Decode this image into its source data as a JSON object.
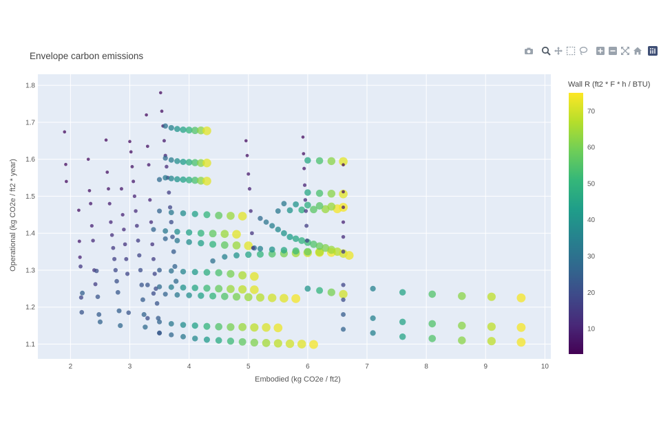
{
  "title": "Envelope carbon emissions",
  "modebar": [
    {
      "icon": "camera-icon"
    },
    {
      "icon": "zoom-icon"
    },
    {
      "icon": "pan-icon"
    },
    {
      "icon": "box-select-icon"
    },
    {
      "icon": "lasso-select-icon"
    },
    {
      "icon": "zoom-in-icon"
    },
    {
      "icon": "zoom-out-icon"
    },
    {
      "icon": "autoscale-icon"
    },
    {
      "icon": "reset-axes-icon"
    },
    {
      "icon": "plotly-logo-icon"
    }
  ],
  "chart_data": {
    "type": "scatter",
    "title": "Envelope carbon emissions",
    "xlabel": "Embodied (kg CO2e / ft2)",
    "ylabel": "Operational (kg CO2e / ft2 * year)",
    "xlim": [
      1.45,
      10.1
    ],
    "ylim": [
      1.06,
      1.83
    ],
    "xticks": [
      "2",
      "3",
      "4",
      "5",
      "6",
      "7",
      "8",
      "9",
      "10"
    ],
    "yticks": [
      "1.1",
      "1.2",
      "1.3",
      "1.4",
      "1.5",
      "1.6",
      "1.7",
      "1.8"
    ],
    "grid": true,
    "colorbar": {
      "title": "Wall R (ft2 * F * h / BTU)",
      "range": [
        3,
        75
      ],
      "ticks": [
        "10",
        "20",
        "30",
        "40",
        "50",
        "60",
        "70"
      ],
      "colorscale": [
        "#440154",
        "#482878",
        "#3e4989",
        "#31688e",
        "#26828e",
        "#1f9e89",
        "#35b779",
        "#6ece58",
        "#b5de2b",
        "#fde725"
      ]
    },
    "series": [
      {
        "x": [
          1.9,
          1.92,
          1.93
        ],
        "y": [
          1.674,
          1.586,
          1.54
        ],
        "c": [
          5,
          5,
          5
        ]
      },
      {
        "x": [
          2.14,
          2.15,
          2.16,
          2.17,
          2.18,
          2.19,
          2.2
        ],
        "y": [
          1.462,
          1.378,
          1.335,
          1.31,
          1.226,
          1.186,
          1.238
        ],
        "c": [
          6,
          8,
          10,
          15,
          18,
          22,
          25
        ]
      },
      {
        "x": [
          2.3,
          2.32,
          2.34,
          2.36,
          2.38,
          2.4,
          2.42,
          2.44,
          2.46,
          2.48,
          2.5
        ],
        "y": [
          1.6,
          1.515,
          1.48,
          1.42,
          1.38,
          1.3,
          1.262,
          1.298,
          1.228,
          1.18,
          1.16
        ],
        "c": [
          5,
          6,
          8,
          10,
          12,
          14,
          16,
          20,
          22,
          24,
          26
        ]
      },
      {
        "x": [
          2.6,
          2.62,
          2.64,
          2.66,
          2.68,
          2.7,
          2.72,
          2.74,
          2.76,
          2.78,
          2.8,
          2.82,
          2.84,
          2.86,
          2.88,
          2.9,
          2.92,
          2.94,
          2.96,
          2.98
        ],
        "y": [
          1.652,
          1.565,
          1.52,
          1.48,
          1.43,
          1.395,
          1.36,
          1.33,
          1.3,
          1.27,
          1.24,
          1.19,
          1.15,
          1.52,
          1.45,
          1.41,
          1.37,
          1.33,
          1.29,
          1.185
        ],
        "c": [
          5,
          6,
          7,
          9,
          11,
          13,
          15,
          17,
          19,
          21,
          23,
          25,
          27,
          8,
          10,
          12,
          14,
          16,
          18,
          22
        ]
      },
      {
        "x": [
          3.0,
          3.02,
          3.04,
          3.06,
          3.08,
          3.1,
          3.12,
          3.14,
          3.16,
          3.18,
          3.2,
          3.22,
          3.24,
          3.26,
          3.28,
          3.3,
          3.32,
          3.34,
          3.36,
          3.38
        ],
        "y": [
          1.648,
          1.62,
          1.58,
          1.54,
          1.5,
          1.46,
          1.42,
          1.38,
          1.34,
          1.3,
          1.26,
          1.22,
          1.18,
          1.146,
          1.72,
          1.635,
          1.585,
          1.49,
          1.43,
          1.37
        ],
        "c": [
          5,
          6,
          7,
          8,
          10,
          12,
          14,
          16,
          18,
          20,
          22,
          24,
          26,
          28,
          5,
          6,
          8,
          10,
          12,
          14
        ]
      },
      {
        "x": [
          3.4,
          3.42,
          3.44,
          3.46,
          3.48,
          3.5,
          3.52,
          3.54,
          3.56,
          3.58,
          3.6,
          3.62,
          3.64,
          3.66,
          3.68,
          3.7,
          3.72,
          3.74,
          3.76,
          3.78
        ],
        "y": [
          1.33,
          1.29,
          1.25,
          1.21,
          1.17,
          1.13,
          1.78,
          1.73,
          1.69,
          1.65,
          1.61,
          1.58,
          1.55,
          1.51,
          1.47,
          1.43,
          1.39,
          1.35,
          1.31,
          1.27
        ],
        "c": [
          16,
          18,
          20,
          22,
          24,
          26,
          5,
          6,
          7,
          8,
          10,
          12,
          14,
          16,
          18,
          20,
          22,
          24,
          26,
          28
        ]
      },
      {
        "x": [
          3.6,
          3.7,
          3.8,
          3.9,
          4.0,
          4.1,
          4.2,
          4.3
        ],
        "y": [
          1.69,
          1.685,
          1.682,
          1.68,
          1.679,
          1.678,
          1.678,
          1.677
        ],
        "c": [
          30,
          35,
          40,
          45,
          50,
          55,
          62,
          72
        ]
      },
      {
        "x": [
          3.6,
          3.7,
          3.8,
          3.9,
          4.0,
          4.1,
          4.2,
          4.3
        ],
        "y": [
          1.603,
          1.598,
          1.595,
          1.593,
          1.592,
          1.591,
          1.59,
          1.59
        ],
        "c": [
          28,
          33,
          38,
          43,
          48,
          54,
          62,
          72
        ]
      },
      {
        "x": [
          3.5,
          3.6,
          3.7,
          3.8,
          3.9,
          4.0,
          4.1,
          4.2,
          4.3
        ],
        "y": [
          1.545,
          1.55,
          1.548,
          1.546,
          1.545,
          1.544,
          1.543,
          1.542,
          1.541
        ],
        "c": [
          28,
          32,
          36,
          40,
          44,
          48,
          54,
          62,
          72
        ]
      },
      {
        "x": [
          3.5,
          3.7,
          3.9,
          4.1,
          4.3,
          4.5,
          4.7,
          4.9
        ],
        "y": [
          1.46,
          1.456,
          1.454,
          1.452,
          1.45,
          1.448,
          1.447,
          1.446
        ],
        "c": [
          26,
          32,
          38,
          44,
          50,
          57,
          64,
          72
        ]
      },
      {
        "x": [
          3.4,
          3.6,
          3.8,
          4.0,
          4.2,
          4.4,
          4.6,
          4.8
        ],
        "y": [
          1.41,
          1.406,
          1.404,
          1.402,
          1.4,
          1.399,
          1.398,
          1.397
        ],
        "c": [
          26,
          32,
          38,
          44,
          50,
          57,
          64,
          72
        ]
      },
      {
        "x": [
          3.6,
          3.8,
          4.0,
          4.2,
          4.4,
          4.6,
          4.8,
          5.0
        ],
        "y": [
          1.385,
          1.38,
          1.376,
          1.373,
          1.37,
          1.368,
          1.367,
          1.366
        ],
        "c": [
          26,
          32,
          38,
          44,
          50,
          57,
          64,
          72
        ]
      },
      {
        "x": [
          3.5,
          3.7,
          3.9,
          4.1,
          4.3,
          4.5,
          4.7,
          4.9,
          5.1
        ],
        "y": [
          1.3,
          1.298,
          1.296,
          1.295,
          1.294,
          1.293,
          1.29,
          1.286,
          1.283
        ],
        "c": [
          24,
          30,
          36,
          42,
          48,
          54,
          60,
          66,
          72
        ]
      },
      {
        "x": [
          3.3,
          3.5,
          3.7,
          3.9,
          4.1,
          4.3,
          4.5,
          4.7,
          4.9,
          5.1
        ],
        "y": [
          1.26,
          1.255,
          1.254,
          1.253,
          1.252,
          1.251,
          1.25,
          1.249,
          1.248,
          1.247
        ],
        "c": [
          22,
          28,
          34,
          40,
          46,
          52,
          58,
          64,
          68,
          72
        ]
      },
      {
        "x": [
          3.4,
          3.6,
          3.8,
          4.0,
          4.2,
          4.4,
          4.6,
          4.8,
          5.0,
          5.2,
          5.4,
          5.6,
          5.8
        ],
        "y": [
          1.237,
          1.235,
          1.233,
          1.232,
          1.231,
          1.23,
          1.229,
          1.228,
          1.227,
          1.226,
          1.225,
          1.224,
          1.223
        ],
        "c": [
          20,
          26,
          32,
          38,
          44,
          50,
          55,
          60,
          64,
          67,
          70,
          72,
          74
        ]
      },
      {
        "x": [
          3.3,
          3.5,
          3.7,
          3.9,
          4.1,
          4.3,
          4.5,
          4.7,
          4.9,
          5.1,
          5.3,
          5.5
        ],
        "y": [
          1.17,
          1.16,
          1.155,
          1.152,
          1.15,
          1.148,
          1.147,
          1.146,
          1.146,
          1.145,
          1.145,
          1.144
        ],
        "c": [
          20,
          26,
          32,
          38,
          44,
          50,
          55,
          60,
          64,
          68,
          71,
          73
        ]
      },
      {
        "x": [
          3.5,
          3.7,
          3.9,
          4.1,
          4.3,
          4.5,
          4.7,
          4.9,
          5.1,
          5.3,
          5.5,
          5.7,
          5.9,
          6.1
        ],
        "y": [
          1.13,
          1.125,
          1.12,
          1.115,
          1.112,
          1.11,
          1.108,
          1.106,
          1.104,
          1.103,
          1.102,
          1.101,
          1.1,
          1.099
        ],
        "c": [
          22,
          27,
          32,
          37,
          42,
          47,
          52,
          57,
          61,
          65,
          68,
          70,
          72,
          74
        ]
      },
      {
        "x": [
          4.4,
          4.6,
          4.8,
          5.0,
          5.2,
          5.4,
          5.6,
          5.8,
          6.0,
          6.2
        ],
        "y": [
          1.325,
          1.336,
          1.34,
          1.342,
          1.343,
          1.344,
          1.345,
          1.346,
          1.347,
          1.348
        ],
        "c": [
          30,
          35,
          40,
          45,
          50,
          55,
          60,
          65,
          70,
          74
        ]
      },
      {
        "x": [
          5.1,
          5.2,
          5.4,
          5.6,
          5.8,
          6.0,
          6.2,
          6.4
        ],
        "y": [
          1.36,
          1.358,
          1.356,
          1.354,
          1.352,
          1.35,
          1.349,
          1.348
        ],
        "c": [
          30,
          35,
          40,
          46,
          52,
          58,
          66,
          74
        ]
      },
      {
        "x": [
          5.5,
          5.7,
          5.9,
          6.1,
          6.3,
          6.5
        ],
        "y": [
          1.46,
          1.462,
          1.463,
          1.464,
          1.465,
          1.466
        ],
        "c": [
          32,
          40,
          48,
          56,
          64,
          74
        ]
      },
      {
        "x": [
          5.6,
          5.8,
          6.0,
          6.2,
          6.4,
          6.6
        ],
        "y": [
          1.48,
          1.478,
          1.476,
          1.474,
          1.472,
          1.47
        ],
        "c": [
          32,
          40,
          48,
          56,
          64,
          74
        ]
      },
      {
        "x": [
          6.0,
          6.2,
          6.4,
          6.6
        ],
        "y": [
          1.51,
          1.508,
          1.507,
          1.506
        ],
        "c": [
          46,
          54,
          62,
          72
        ]
      },
      {
        "x": [
          6.0,
          6.2,
          6.4,
          6.6
        ],
        "y": [
          1.597,
          1.596,
          1.595,
          1.594
        ],
        "c": [
          46,
          54,
          62,
          72
        ]
      },
      {
        "x": [
          5.2,
          5.3,
          5.4,
          5.5,
          5.6,
          5.7,
          5.8,
          5.9,
          6.0,
          6.1,
          6.2,
          6.3,
          6.4,
          6.5,
          6.6,
          6.7
        ],
        "y": [
          1.44,
          1.43,
          1.42,
          1.41,
          1.4,
          1.39,
          1.385,
          1.38,
          1.375,
          1.37,
          1.365,
          1.36,
          1.355,
          1.35,
          1.345,
          1.34
        ],
        "c": [
          28,
          31,
          34,
          37,
          40,
          43,
          46,
          49,
          52,
          55,
          58,
          61,
          64,
          67,
          70,
          73
        ]
      },
      {
        "x": [
          6.0,
          6.2,
          6.4,
          6.6
        ],
        "y": [
          1.25,
          1.245,
          1.24,
          1.235
        ],
        "c": [
          40,
          50,
          60,
          70
        ]
      },
      {
        "x": [
          7.1,
          7.6,
          8.1,
          8.6,
          9.1,
          9.6
        ],
        "y": [
          1.25,
          1.24,
          1.235,
          1.23,
          1.228,
          1.225
        ],
        "c": [
          35,
          45,
          55,
          62,
          68,
          74
        ]
      },
      {
        "x": [
          7.1,
          7.6,
          8.1,
          8.6,
          9.1,
          9.6
        ],
        "y": [
          1.17,
          1.16,
          1.155,
          1.15,
          1.147,
          1.145
        ],
        "c": [
          35,
          45,
          55,
          62,
          68,
          74
        ]
      },
      {
        "x": [
          7.1,
          7.6,
          8.1,
          8.6,
          9.1,
          9.6
        ],
        "y": [
          1.13,
          1.12,
          1.115,
          1.11,
          1.108,
          1.105
        ],
        "c": [
          35,
          45,
          55,
          62,
          68,
          74
        ]
      },
      {
        "x": [
          6.6,
          6.6,
          6.6,
          6.6,
          6.6,
          6.6,
          6.6,
          6.6,
          6.6,
          6.6
        ],
        "y": [
          1.585,
          1.512,
          1.47,
          1.43,
          1.39,
          1.35,
          1.26,
          1.22,
          1.18,
          1.14
        ],
        "c": [
          5,
          6,
          8,
          10,
          12,
          15,
          18,
          20,
          24,
          26
        ]
      },
      {
        "x": [
          5.92,
          5.93,
          5.94,
          5.95,
          5.96,
          5.97,
          5.98,
          5.99
        ],
        "y": [
          1.66,
          1.615,
          1.575,
          1.53,
          1.49,
          1.46,
          1.42,
          1.38
        ],
        "c": [
          5,
          6,
          8,
          10,
          12,
          14,
          16,
          18
        ]
      },
      {
        "x": [
          4.96,
          4.98,
          5.0,
          5.02,
          5.04,
          5.06,
          5.08
        ],
        "y": [
          1.65,
          1.61,
          1.56,
          1.52,
          1.46,
          1.4,
          1.36
        ],
        "c": [
          5,
          6,
          8,
          10,
          12,
          14,
          16
        ]
      }
    ]
  }
}
